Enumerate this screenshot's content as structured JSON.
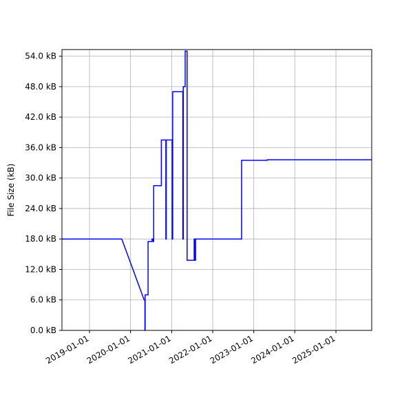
{
  "chart_data": {
    "type": "line",
    "ylabel": "File Size (kB)",
    "x_tick_labels": [
      "2019-01-01",
      "2020-01-01",
      "2021-01-01",
      "2022-01-01",
      "2023-01-01",
      "2024-01-01",
      "2025-01-01"
    ],
    "x_ticks": [
      "2019-01-01",
      "2020-01-01",
      "2021-01-01",
      "2022-01-01",
      "2023-01-01",
      "2024-01-01",
      "2025-01-01"
    ],
    "xlim": [
      "2018-05-01",
      "2025-11-15"
    ],
    "y_tick_labels": [
      "0.0 kB",
      "6.0 kB",
      "12.0 kB",
      "18.0 kB",
      "24.0 kB",
      "30.0 kB",
      "36.0 kB",
      "42.0 kB",
      "48.0 kB",
      "54.0 kB"
    ],
    "y_ticks": [
      0,
      6,
      12,
      18,
      24,
      30,
      36,
      42,
      48,
      54
    ],
    "ylim": [
      0,
      55.3
    ],
    "grid": true,
    "color": "#0000ff",
    "series": [
      {
        "step": "post",
        "points": [
          [
            "2018-05-01",
            18.0
          ],
          [
            "2019-10-15",
            18.0
          ],
          [
            "2020-05-01",
            6.0
          ],
          [
            "2020-05-08",
            0.0
          ],
          [
            "2020-05-10",
            7.0
          ],
          [
            "2020-06-05",
            17.5
          ],
          [
            "2020-07-10",
            18.0
          ],
          [
            "2020-07-20",
            17.5
          ],
          [
            "2020-07-25",
            28.5
          ],
          [
            "2020-10-01",
            37.5
          ],
          [
            "2020-11-10",
            18.0
          ],
          [
            "2020-11-14",
            37.5
          ],
          [
            "2021-01-05",
            18.0
          ],
          [
            "2021-01-10",
            47.0
          ],
          [
            "2021-04-10",
            18.0
          ],
          [
            "2021-04-14",
            48.0
          ],
          [
            "2021-05-01",
            55.0
          ],
          [
            "2021-05-18",
            13.8
          ],
          [
            "2021-07-20",
            18.0
          ],
          [
            "2021-07-25",
            13.8
          ],
          [
            "2021-08-01",
            18.0
          ],
          [
            "2022-09-15",
            33.5
          ],
          [
            "2023-05-01",
            33.6
          ],
          [
            "2025-11-15",
            33.6
          ]
        ]
      }
    ]
  }
}
